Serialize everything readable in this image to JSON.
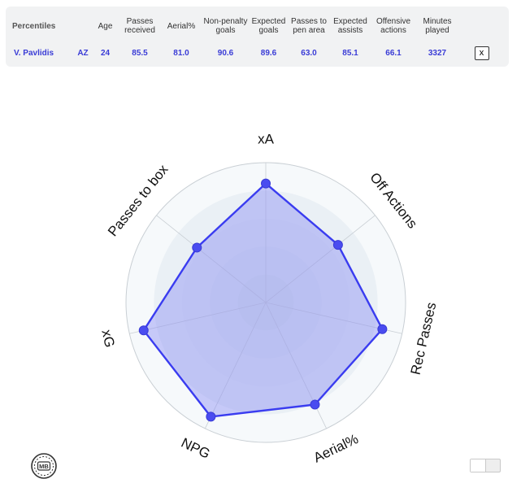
{
  "table": {
    "corner_label": "Percentiles",
    "headers": [
      "Age",
      "Passes received",
      "Aerial%",
      "Non-penalty goals",
      "Expected goals",
      "Passes to pen area",
      "Expected assists",
      "Offensive actions",
      "Minutes played"
    ],
    "row": {
      "player": "V. Pavlidis",
      "team": "AZ",
      "values": [
        "24",
        "85.5",
        "81.0",
        "90.6",
        "89.6",
        "63.0",
        "85.1",
        "66.1",
        "3327"
      ]
    },
    "close_label": "x"
  },
  "chart_data": {
    "type": "radar",
    "axes": [
      "xA",
      "Off Actions",
      "Rec Passes",
      "Aerial%",
      "NPG",
      "xG",
      "Passes to box"
    ],
    "values": [
      85.1,
      66.1,
      85.5,
      81.0,
      90.6,
      89.6,
      63.0
    ],
    "rlim": [
      0,
      100
    ],
    "rings": 5,
    "colors": {
      "line": "#3a3cf0",
      "fill": "#8c8ef5",
      "point": "#4a4cf0",
      "ring_light": "#f2f6f9",
      "ring_dark": "#e2ebf1",
      "grid": "#c9cfd4"
    }
  },
  "logo": {
    "text": "MB",
    "icon": "mb-logo-icon"
  }
}
